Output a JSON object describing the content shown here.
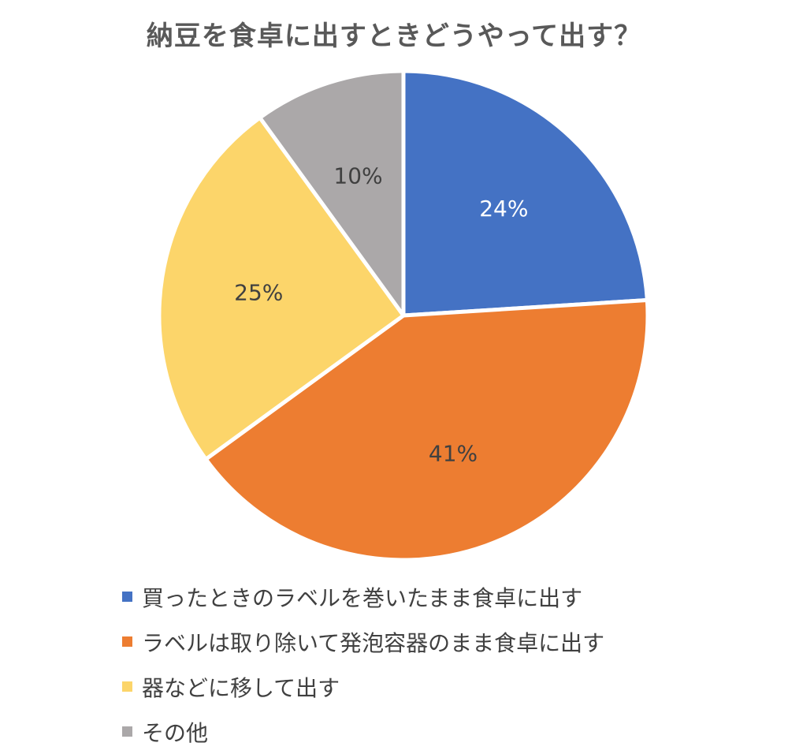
{
  "chart_data": {
    "type": "pie",
    "title": "納豆を食卓に出すときどうやって出す？",
    "slices": [
      {
        "label": "買ったときのラベルを巻いたまま食卓に出す",
        "value": 24,
        "display": "24%",
        "color": "#4472C4",
        "label_color": "#FFFFFF"
      },
      {
        "label": "ラベルは取り除いて発泡容器のまま食卓に出す",
        "value": 41,
        "display": "41%",
        "color": "#ED7D31",
        "label_color": "#404040"
      },
      {
        "label": "器などに移して出す",
        "value": 25,
        "display": "25%",
        "color": "#FCD56A",
        "label_color": "#404040"
      },
      {
        "label": "その他",
        "value": 10,
        "display": "10%",
        "color": "#ABA8A9",
        "label_color": "#404040"
      }
    ],
    "start_angle_deg": 0,
    "direction": "clockwise",
    "legend_position": "bottom-left"
  }
}
